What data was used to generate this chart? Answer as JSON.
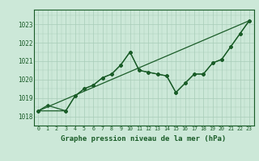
{
  "title": "Graphe pression niveau de la mer (hPa)",
  "background_color": "#cce8d8",
  "grid_color": "#a8ccb8",
  "line_color": "#1a5c28",
  "xlim": [
    -0.5,
    23.5
  ],
  "ylim": [
    1017.5,
    1023.8
  ],
  "yticks": [
    1018,
    1019,
    1020,
    1021,
    1022,
    1023
  ],
  "xtick_labels": [
    "0",
    "1",
    "2",
    "3",
    "4",
    "5",
    "6",
    "7",
    "8",
    "9",
    "10",
    "11",
    "12",
    "13",
    "14",
    "15",
    "16",
    "17",
    "18",
    "19",
    "20",
    "21",
    "22",
    "23"
  ],
  "series1": {
    "x": [
      0,
      1,
      3,
      4,
      5,
      6,
      7,
      8,
      9,
      10,
      11,
      12,
      13,
      14,
      15,
      16,
      17,
      18,
      19,
      20,
      21,
      22,
      23
    ],
    "y": [
      1018.3,
      1018.6,
      1018.3,
      1019.1,
      1019.5,
      1019.7,
      1020.1,
      1020.3,
      1020.8,
      1021.5,
      1020.5,
      1020.4,
      1020.3,
      1020.2,
      1019.3,
      1019.8,
      1020.3,
      1020.3,
      1020.9,
      1021.1,
      1021.8,
      1022.5,
      1023.2
    ]
  },
  "series2": {
    "x": [
      0,
      3,
      4,
      5,
      6,
      7,
      8,
      9,
      10,
      11,
      12,
      13,
      14,
      15,
      16,
      17,
      18,
      19,
      20,
      21,
      22,
      23
    ],
    "y": [
      1018.3,
      1018.3,
      1019.1,
      1019.5,
      1019.7,
      1020.1,
      1020.3,
      1020.8,
      1021.5,
      1020.5,
      1020.4,
      1020.3,
      1020.2,
      1019.3,
      1019.8,
      1020.3,
      1020.3,
      1020.9,
      1021.1,
      1021.8,
      1022.5,
      1023.2
    ]
  },
  "series3": {
    "x": [
      0,
      23
    ],
    "y": [
      1018.3,
      1023.2
    ]
  }
}
